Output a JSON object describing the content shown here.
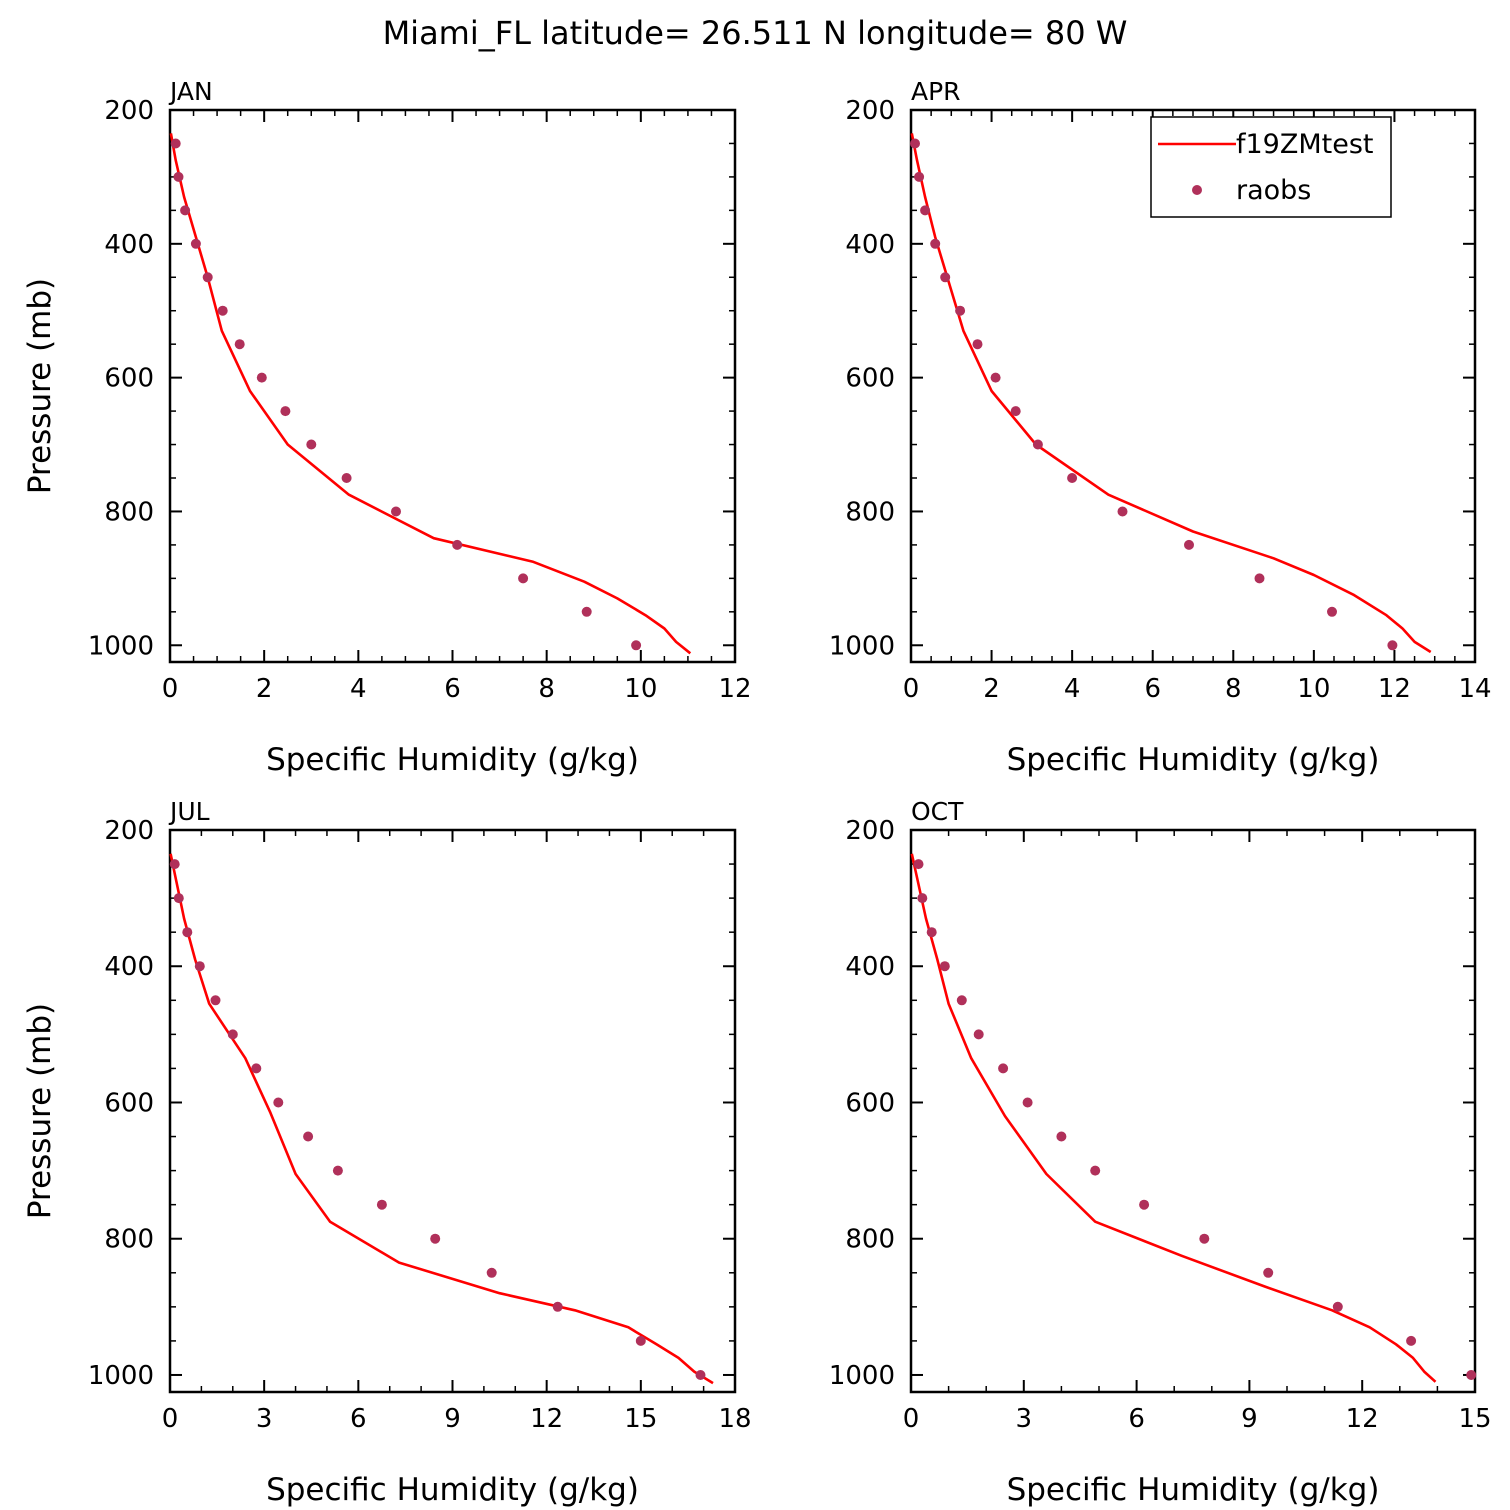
{
  "figure": {
    "title": "Miami_FL  latitude= 26.511 N longitude= 80 W"
  },
  "legend": {
    "placement": "top-right of APR panel",
    "entries": [
      {
        "label": "f19ZMtest",
        "kind": "line",
        "color": "#ff0000"
      },
      {
        "label": "raobs",
        "kind": "marker",
        "color": "#b0305a"
      }
    ]
  },
  "colors": {
    "model_line": "#ff0000",
    "obs_marker": "#b0305a",
    "axes": "#000000"
  },
  "chart_data": [
    {
      "type": "line",
      "panel_label": "JAN",
      "xlabel": "Specific Humidity (g/kg)",
      "ylabel": "Pressure (mb)",
      "xlim": [
        0,
        12
      ],
      "ylim": [
        1025,
        200
      ],
      "y_reversed": true,
      "grid": false,
      "xticks": [
        0,
        2,
        4,
        6,
        8,
        10,
        12
      ],
      "yticks": [
        200,
        400,
        600,
        800,
        1000
      ],
      "series": [
        {
          "name": "f19ZMtest",
          "kind": "line",
          "color": "#ff0000",
          "points": [
            [
              0.02,
              235
            ],
            [
              0.12,
              275
            ],
            [
              0.3,
              330
            ],
            [
              0.55,
              390
            ],
            [
              0.8,
              450
            ],
            [
              1.1,
              530
            ],
            [
              1.7,
              620
            ],
            [
              2.5,
              700
            ],
            [
              3.8,
              775
            ],
            [
              5.6,
              840
            ],
            [
              7.7,
              875
            ],
            [
              8.8,
              905
            ],
            [
              9.5,
              930
            ],
            [
              10.1,
              955
            ],
            [
              10.5,
              975
            ],
            [
              10.75,
              995
            ],
            [
              11.05,
              1012
            ]
          ]
        },
        {
          "name": "raobs",
          "kind": "scatter",
          "color": "#b0305a",
          "points": [
            [
              0.12,
              250
            ],
            [
              0.18,
              300
            ],
            [
              0.32,
              350
            ],
            [
              0.55,
              400
            ],
            [
              0.8,
              450
            ],
            [
              1.12,
              500
            ],
            [
              1.48,
              550
            ],
            [
              1.95,
              600
            ],
            [
              2.45,
              650
            ],
            [
              3.0,
              700
            ],
            [
              3.75,
              750
            ],
            [
              4.8,
              800
            ],
            [
              6.1,
              850
            ],
            [
              7.5,
              900
            ],
            [
              8.85,
              950
            ],
            [
              9.9,
              1000
            ]
          ]
        }
      ]
    },
    {
      "type": "line",
      "panel_label": "APR",
      "xlabel": "Specific Humidity (g/kg)",
      "ylabel": "",
      "xlim": [
        0,
        14
      ],
      "ylim": [
        1025,
        200
      ],
      "y_reversed": true,
      "grid": false,
      "xticks": [
        0,
        2,
        4,
        6,
        8,
        10,
        12,
        14
      ],
      "yticks": [
        200,
        400,
        600,
        800,
        1000
      ],
      "series": [
        {
          "name": "f19ZMtest",
          "kind": "line",
          "color": "#ff0000",
          "points": [
            [
              0.02,
              235
            ],
            [
              0.15,
              275
            ],
            [
              0.35,
              330
            ],
            [
              0.6,
              390
            ],
            [
              0.9,
              450
            ],
            [
              1.3,
              530
            ],
            [
              2.0,
              620
            ],
            [
              3.1,
              700
            ],
            [
              4.9,
              775
            ],
            [
              7.0,
              830
            ],
            [
              9.0,
              870
            ],
            [
              10.0,
              895
            ],
            [
              11.0,
              925
            ],
            [
              11.8,
              955
            ],
            [
              12.2,
              975
            ],
            [
              12.5,
              995
            ],
            [
              12.9,
              1010
            ]
          ]
        },
        {
          "name": "raobs",
          "kind": "scatter",
          "color": "#b0305a",
          "points": [
            [
              0.1,
              250
            ],
            [
              0.2,
              300
            ],
            [
              0.35,
              350
            ],
            [
              0.6,
              400
            ],
            [
              0.85,
              450
            ],
            [
              1.22,
              500
            ],
            [
              1.65,
              550
            ],
            [
              2.1,
              600
            ],
            [
              2.6,
              650
            ],
            [
              3.15,
              700
            ],
            [
              4.0,
              750
            ],
            [
              5.25,
              800
            ],
            [
              6.9,
              850
            ],
            [
              8.65,
              900
            ],
            [
              10.45,
              950
            ],
            [
              11.95,
              1000
            ]
          ]
        }
      ]
    },
    {
      "type": "line",
      "panel_label": "JUL",
      "xlabel": "Specific Humidity (g/kg)",
      "ylabel": "Pressure (mb)",
      "xlim": [
        0,
        18
      ],
      "ylim": [
        1025,
        200
      ],
      "y_reversed": true,
      "grid": false,
      "xticks": [
        0,
        3,
        6,
        9,
        12,
        15,
        18
      ],
      "yticks": [
        200,
        400,
        600,
        800,
        1000
      ],
      "series": [
        {
          "name": "f19ZMtest",
          "kind": "line",
          "color": "#ff0000",
          "points": [
            [
              0.02,
              235
            ],
            [
              0.2,
              275
            ],
            [
              0.45,
              330
            ],
            [
              0.8,
              390
            ],
            [
              1.25,
              455
            ],
            [
              2.4,
              535
            ],
            [
              3.2,
              615
            ],
            [
              4.0,
              705
            ],
            [
              5.1,
              775
            ],
            [
              7.3,
              835
            ],
            [
              10.5,
              880
            ],
            [
              12.9,
              905
            ],
            [
              14.6,
              930
            ],
            [
              15.5,
              955
            ],
            [
              16.2,
              975
            ],
            [
              16.7,
              995
            ],
            [
              17.3,
              1012
            ]
          ]
        },
        {
          "name": "raobs",
          "kind": "scatter",
          "color": "#b0305a",
          "points": [
            [
              0.15,
              250
            ],
            [
              0.28,
              300
            ],
            [
              0.55,
              350
            ],
            [
              0.95,
              400
            ],
            [
              1.45,
              450
            ],
            [
              2.0,
              500
            ],
            [
              2.75,
              550
            ],
            [
              3.45,
              600
            ],
            [
              4.4,
              650
            ],
            [
              5.35,
              700
            ],
            [
              6.75,
              750
            ],
            [
              8.45,
              800
            ],
            [
              10.25,
              850
            ],
            [
              12.35,
              900
            ],
            [
              15.0,
              950
            ],
            [
              16.9,
              1000
            ]
          ]
        }
      ]
    },
    {
      "type": "line",
      "panel_label": "OCT",
      "xlabel": "Specific Humidity (g/kg)",
      "ylabel": "",
      "xlim": [
        0,
        15
      ],
      "ylim": [
        1025,
        200
      ],
      "y_reversed": true,
      "grid": false,
      "xticks": [
        0,
        3,
        6,
        9,
        12,
        15
      ],
      "yticks": [
        200,
        400,
        600,
        800,
        1000
      ],
      "series": [
        {
          "name": "f19ZMtest",
          "kind": "line",
          "color": "#ff0000",
          "points": [
            [
              0.02,
              235
            ],
            [
              0.18,
              275
            ],
            [
              0.4,
              330
            ],
            [
              0.7,
              390
            ],
            [
              1.0,
              455
            ],
            [
              1.6,
              535
            ],
            [
              2.5,
              620
            ],
            [
              3.6,
              705
            ],
            [
              4.9,
              775
            ],
            [
              7.2,
              825
            ],
            [
              9.4,
              870
            ],
            [
              11.2,
              905
            ],
            [
              12.2,
              930
            ],
            [
              12.9,
              955
            ],
            [
              13.35,
              975
            ],
            [
              13.65,
              995
            ],
            [
              13.95,
              1010
            ]
          ]
        },
        {
          "name": "raobs",
          "kind": "scatter",
          "color": "#b0305a",
          "points": [
            [
              0.2,
              250
            ],
            [
              0.3,
              300
            ],
            [
              0.55,
              350
            ],
            [
              0.9,
              400
            ],
            [
              1.35,
              450
            ],
            [
              1.8,
              500
            ],
            [
              2.45,
              550
            ],
            [
              3.1,
              600
            ],
            [
              4.0,
              650
            ],
            [
              4.9,
              700
            ],
            [
              6.2,
              750
            ],
            [
              7.8,
              800
            ],
            [
              9.5,
              850
            ],
            [
              11.35,
              900
            ],
            [
              13.3,
              950
            ],
            [
              14.9,
              1000
            ]
          ]
        }
      ]
    }
  ]
}
